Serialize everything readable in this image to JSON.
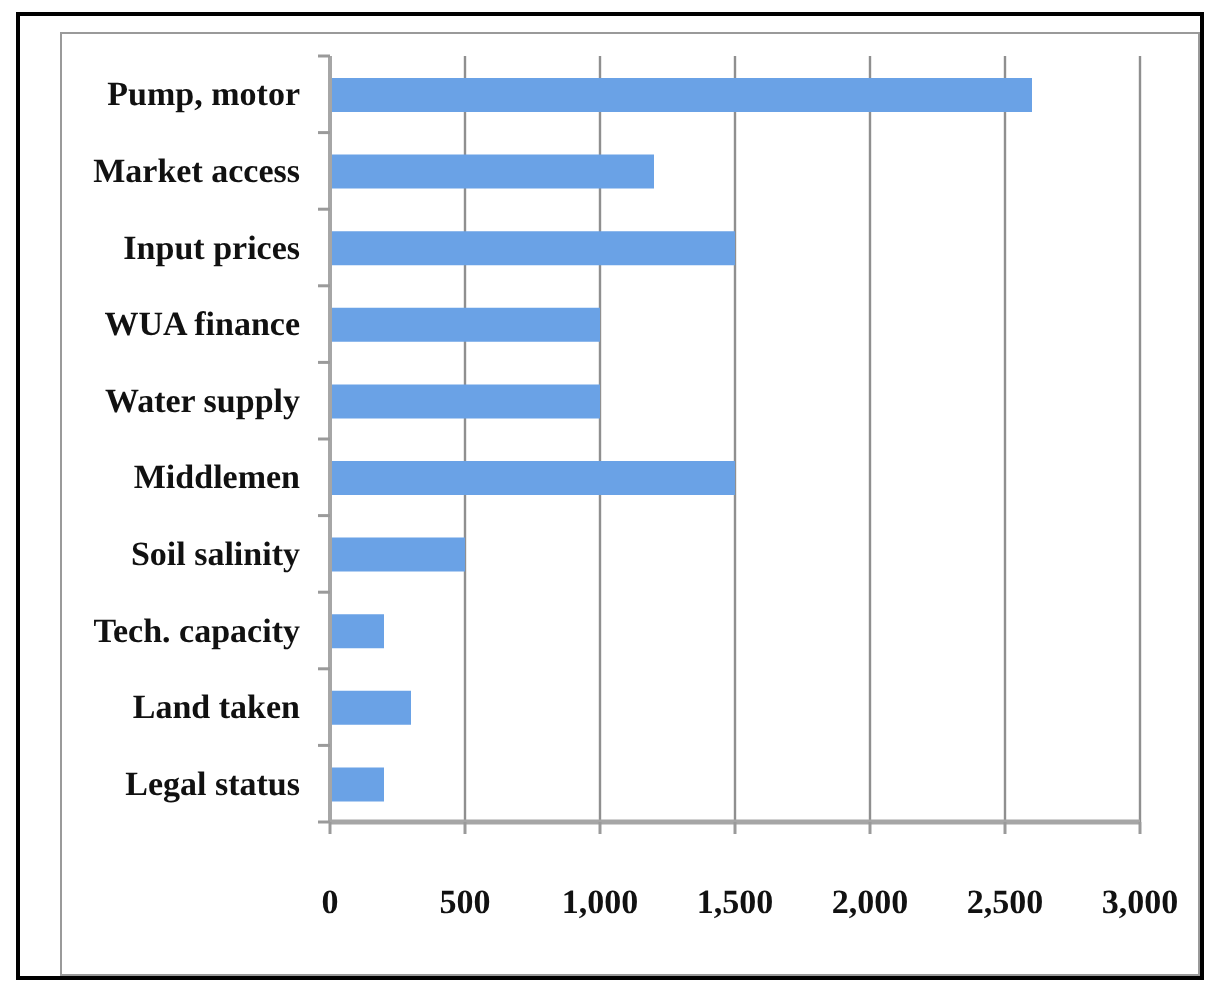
{
  "chart_data": {
    "type": "bar",
    "orientation": "horizontal",
    "categories": [
      "Pump, motor",
      "Market access",
      "Input prices",
      "WUA finance",
      "Water supply",
      "Middlemen",
      "Soil salinity",
      "Tech. capacity",
      "Land taken",
      "Legal status"
    ],
    "values": [
      2600,
      1200,
      1500,
      1000,
      1000,
      1500,
      500,
      200,
      300,
      200
    ],
    "color": "#6aa2e6",
    "xlim": [
      0,
      3000
    ],
    "xticks": [
      0,
      500,
      {
        "value": 1000,
        "label": "1,000"
      },
      {
        "value": 1500,
        "label": "1,500"
      },
      {
        "value": 2000,
        "label": "2,000"
      },
      {
        "value": 2500,
        "label": "2,500"
      },
      {
        "value": 3000,
        "label": "3,000"
      }
    ],
    "grid": "x"
  }
}
